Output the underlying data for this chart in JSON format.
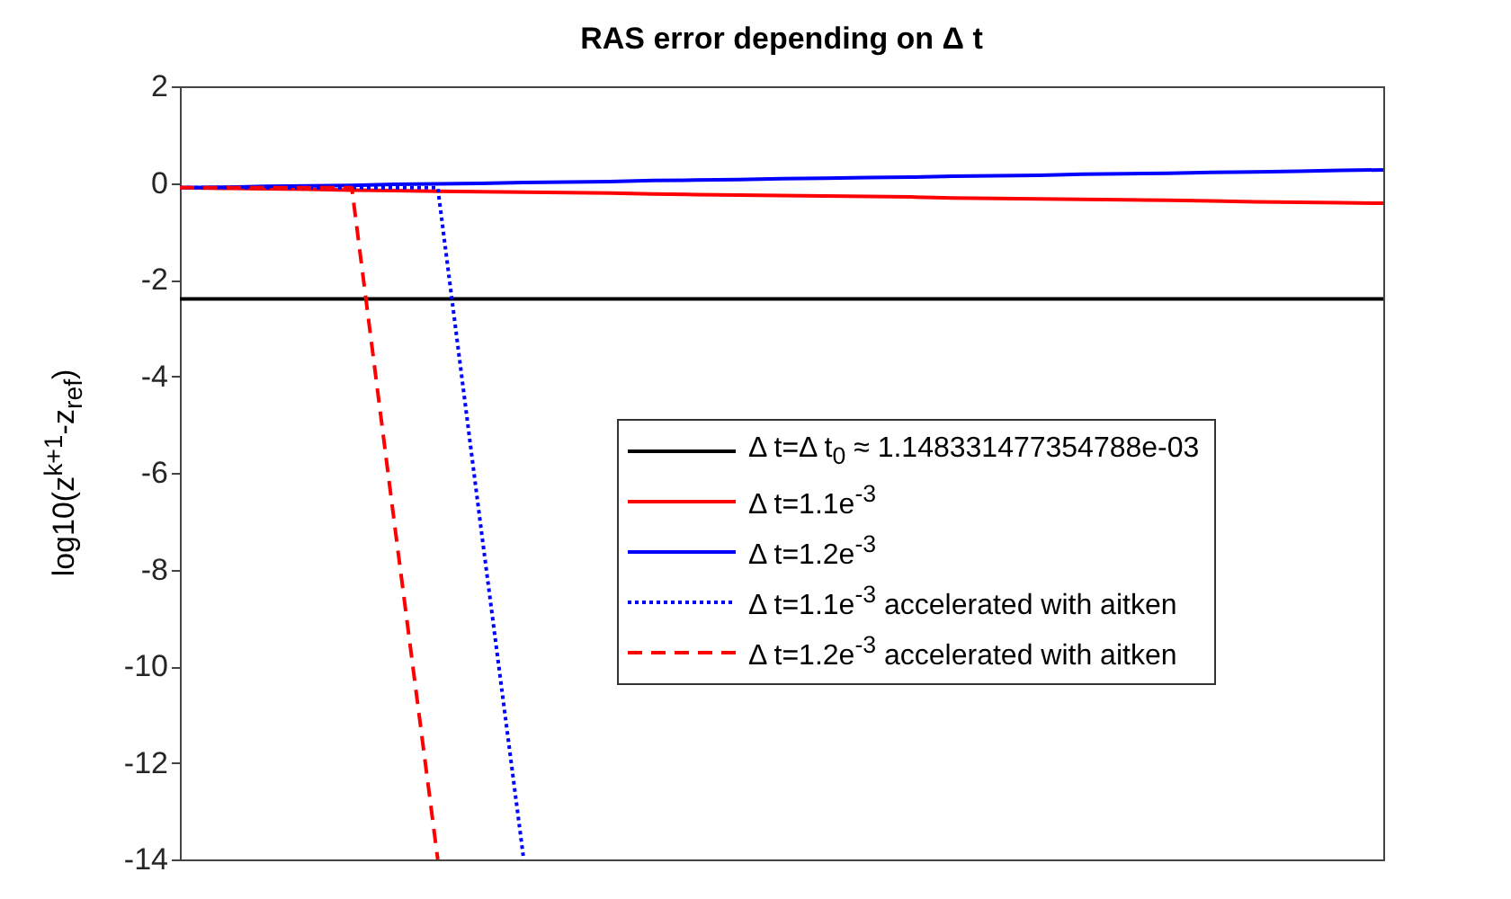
{
  "chart_data": {
    "type": "line",
    "title": "RAS error depending on Δ t",
    "ylabel": "log10(z$^{k+1}$-z$_{ref}$)",
    "categories": [
      null,
      null,
      null,
      null,
      null,
      null,
      null,
      null,
      null,
      null,
      null,
      null,
      null,
      null,
      null,
      null,
      null,
      null,
      null,
      null,
      null,
      null,
      null,
      null,
      null,
      null,
      null,
      null,
      null
    ],
    "ylim": [
      -14,
      2
    ],
    "yticks": [
      -14,
      -12,
      -10,
      -8,
      -6,
      -4,
      -2,
      0,
      2
    ],
    "tick_labels": "y",
    "grid": false,
    "legend": "right",
    "series": [
      {
        "name": "Δ t=Δ t$_{0}$ ≈ 1.148331477354788e-03",
        "color": "#000000",
        "line_style": "solid",
        "values": [
          -2.4,
          -2.4,
          -2.4,
          -2.4,
          -2.4,
          -2.4,
          -2.4,
          -2.4,
          -2.4,
          -2.4,
          -2.4,
          -2.4,
          -2.4,
          -2.4,
          -2.4,
          -2.4,
          -2.4,
          -2.4,
          -2.4,
          -2.4,
          -2.4,
          -2.4,
          -2.4,
          -2.4,
          -2.4,
          -2.4,
          -2.4,
          -2.4,
          -2.4
        ]
      },
      {
        "name": "Δ t=1.1e$^{-3}$",
        "color": "#ff0000",
        "line_style": "solid",
        "values": [
          -0.1,
          -0.11,
          -0.12,
          -0.13,
          -0.15,
          -0.16,
          -0.17,
          -0.18,
          -0.19,
          -0.2,
          -0.21,
          -0.23,
          -0.24,
          -0.25,
          -0.26,
          -0.27,
          -0.28,
          -0.29,
          -0.31,
          -0.32,
          -0.33,
          -0.34,
          -0.35,
          -0.36,
          -0.37,
          -0.39,
          -0.4,
          -0.41,
          -0.42
        ]
      },
      {
        "name": "Δ t=1.2e$^{-3}$",
        "color": "#0000ff",
        "line_style": "solid",
        "values": [
          -0.1,
          -0.09,
          -0.07,
          -0.06,
          -0.05,
          -0.03,
          -0.02,
          -0.01,
          0.01,
          0.02,
          0.03,
          0.05,
          0.06,
          0.07,
          0.09,
          0.1,
          0.11,
          0.12,
          0.14,
          0.15,
          0.16,
          0.18,
          0.19,
          0.2,
          0.22,
          0.23,
          0.24,
          0.26,
          0.27
        ]
      },
      {
        "name": "Δ t=1.1e$^{-3}$ accelerated with aitken",
        "color": "#0000ff",
        "line_style": "dotted",
        "values": [
          -0.1,
          -0.1,
          -0.1,
          -0.1,
          -0.1,
          -0.1,
          -0.1,
          -7.1,
          -14,
          null,
          null,
          null,
          null,
          null,
          null,
          null,
          null,
          null,
          null,
          null,
          null,
          null,
          null,
          null,
          null,
          null,
          null,
          null,
          null
        ]
      },
      {
        "name": "Δ t=1.2e$^{-3}$ accelerated with aitken",
        "color": "#ff0000",
        "line_style": "dashed",
        "values": [
          -0.1,
          -0.1,
          -0.1,
          -0.1,
          -0.1,
          -7.1,
          -14,
          null,
          null,
          null,
          null,
          null,
          null,
          null,
          null,
          null,
          null,
          null,
          null,
          null,
          null,
          null,
          null,
          null,
          null,
          null,
          null,
          null,
          null
        ]
      }
    ]
  }
}
